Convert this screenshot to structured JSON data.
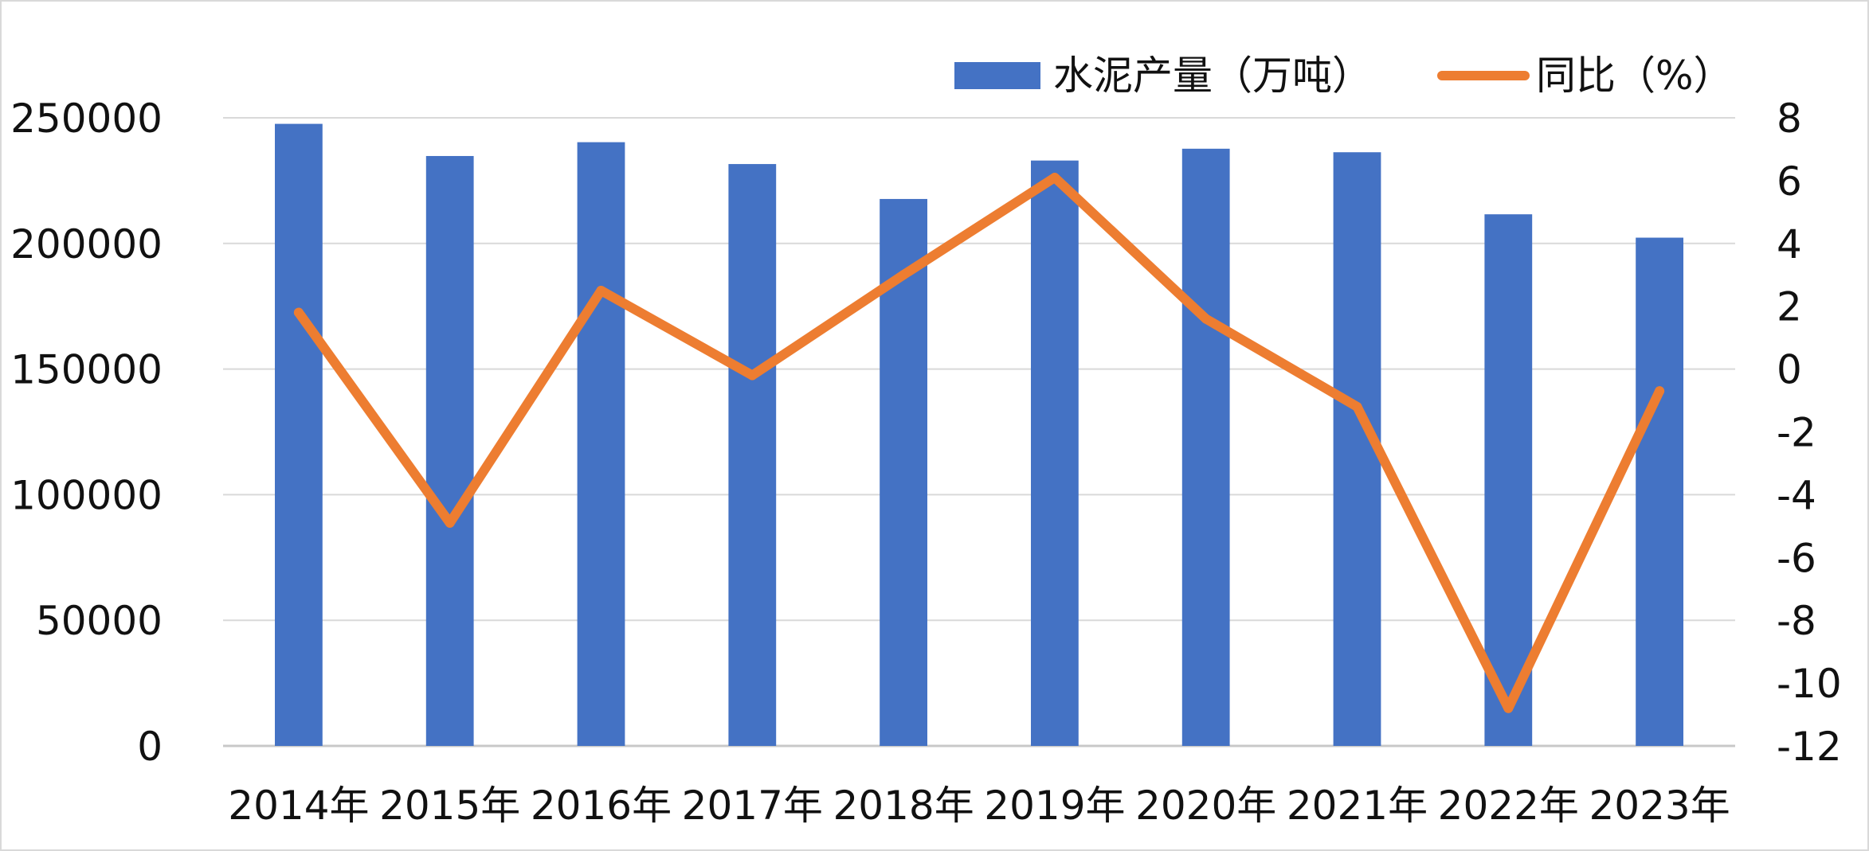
{
  "chart_data": {
    "type": "bar",
    "categories": [
      "2014年",
      "2015年",
      "2016年",
      "2017年",
      "2018年",
      "2019年",
      "2020年",
      "2021年",
      "2022年",
      "2023年"
    ],
    "series": [
      {
        "name": "水泥产量（万吨）",
        "type": "bar",
        "axis": "left",
        "color": "#4472C4",
        "values": [
          247600,
          234800,
          240300,
          231600,
          217700,
          233000,
          237700,
          236300,
          211600,
          202300
        ]
      },
      {
        "name": "同比（%）",
        "type": "line",
        "axis": "right",
        "color": "#ED7D31",
        "values": [
          1.8,
          -4.9,
          2.5,
          -0.2,
          3.0,
          6.1,
          1.6,
          -1.2,
          -10.8,
          -0.7
        ]
      }
    ],
    "y_left": {
      "lim": [
        0,
        250000
      ],
      "ticks": [
        "0",
        "50000",
        "100000",
        "150000",
        "200000",
        "250000"
      ]
    },
    "y_right": {
      "lim": [
        -12,
        8
      ],
      "ticks": [
        "-12",
        "-10",
        "-8",
        "-6",
        "-4",
        "-2",
        "0",
        "2",
        "4",
        "6",
        "8"
      ]
    },
    "grid": true,
    "legend_position": "top-right"
  }
}
